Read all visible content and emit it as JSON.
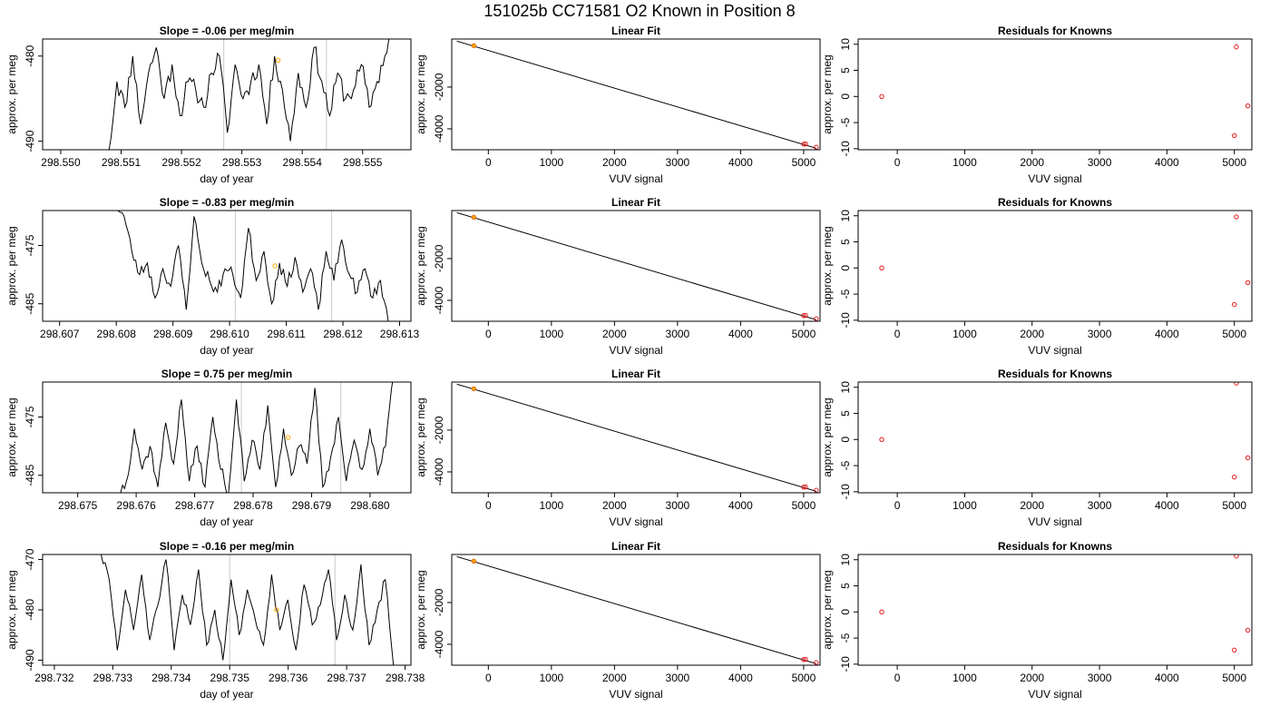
{
  "figure": {
    "title": "151025b     CC71581    O2 Known in Position  8"
  },
  "chart_data": [
    {
      "type": "line",
      "panel": "trace",
      "row": 0,
      "title": "Slope =  -0.06  per meg/min",
      "xlabel": "day of year",
      "ylabel": "approx. per meg",
      "xlim": [
        298.5497,
        298.5558
      ],
      "ylim": [
        -491,
        -478
      ],
      "xticks": [
        298.55,
        298.551,
        298.552,
        298.553,
        298.554,
        298.555
      ],
      "xtick_labels": [
        "298.550",
        "298.551",
        "298.552",
        "298.553",
        "298.554",
        "298.555"
      ],
      "yticks": [
        -480,
        -490
      ],
      "ytick_labels": [
        "-480",
        "-490"
      ],
      "vlines": [
        298.5527,
        298.5544
      ],
      "marker": {
        "x": 298.5536,
        "y": -480.5
      },
      "trace": {
        "x_start": 298.5508,
        "x_end": 298.5555,
        "seed": 11,
        "values": [
          -491,
          -483,
          -486,
          -480,
          -488,
          -482,
          -479,
          -485,
          -481,
          -487,
          -483,
          -484,
          -486,
          -482,
          -480,
          -489,
          -481,
          -485,
          -483,
          -481,
          -488,
          -480,
          -484,
          -490,
          -482,
          -486,
          -479,
          -483,
          -487,
          -482,
          -485,
          -484,
          -481,
          -486,
          -483,
          -480,
          -476
        ]
      }
    },
    {
      "type": "scatter",
      "panel": "linear-fit",
      "row": 0,
      "title": "Linear Fit",
      "xlabel": "VUV signal",
      "ylabel": "approx. per meg",
      "xlim": [
        -580,
        5260
      ],
      "ylim": [
        -5000,
        300
      ],
      "xticks": [
        0,
        1000,
        2000,
        3000,
        4000,
        5000
      ],
      "xtick_labels": [
        "0",
        "1000",
        "2000",
        "3000",
        "4000",
        "5000"
      ],
      "yticks": [
        -2000,
        -4000
      ],
      "ytick_labels": [
        "-2000",
        "-4000"
      ],
      "fit_line": {
        "x": [
          -500,
          5200
        ],
        "y": [
          200,
          -4930
        ]
      },
      "points": [
        {
          "x": -230,
          "y": -20,
          "color": "#d55e00"
        },
        {
          "x": 5000,
          "y": -4730,
          "color": "#e41a1c"
        },
        {
          "x": 5030,
          "y": -4720,
          "color": "#e41a1c"
        },
        {
          "x": 5200,
          "y": -4880,
          "color": "#e41a1c"
        }
      ],
      "highlight": {
        "x": -230,
        "y": -20,
        "color": "#ffa500"
      }
    },
    {
      "type": "scatter",
      "panel": "residuals",
      "row": 0,
      "title": "Residuals for Knowns",
      "xlabel": "VUV signal",
      "ylabel": "approx. per meg",
      "xlim": [
        -580,
        5260
      ],
      "ylim": [
        -10.2,
        11
      ],
      "xticks": [
        0,
        1000,
        2000,
        3000,
        4000,
        5000
      ],
      "xtick_labels": [
        "0",
        "1000",
        "2000",
        "3000",
        "4000",
        "5000"
      ],
      "yticks": [
        10,
        5,
        0,
        -5,
        -10
      ],
      "ytick_labels": [
        "10",
        "5",
        "0",
        "-5",
        "-10"
      ],
      "points": [
        {
          "x": -230,
          "y": 0,
          "color": "#e41a1c"
        },
        {
          "x": 5000,
          "y": -7.5,
          "color": "#e41a1c"
        },
        {
          "x": 5030,
          "y": 9.5,
          "color": "#e41a1c"
        },
        {
          "x": 5200,
          "y": -1.8,
          "color": "#e41a1c"
        }
      ]
    },
    {
      "type": "line",
      "panel": "trace",
      "row": 1,
      "title": "Slope =  -0.83  per meg/min",
      "xlabel": "day of year",
      "ylabel": "approx. per meg",
      "xlim": [
        298.6067,
        298.6132
      ],
      "ylim": [
        -488,
        -469
      ],
      "xticks": [
        298.607,
        298.608,
        298.609,
        298.61,
        298.611,
        298.612,
        298.613
      ],
      "xtick_labels": [
        "298.607",
        "298.608",
        "298.609",
        "298.610",
        "298.611",
        "298.612",
        "298.613"
      ],
      "yticks": [
        -475,
        -485
      ],
      "ytick_labels": [
        "-475",
        "-485"
      ],
      "vlines": [
        298.6101,
        298.6118
      ],
      "marker": {
        "x": 298.6108,
        "y": -478.5
      },
      "trace": {
        "x_start": 298.608,
        "x_end": 298.6128,
        "seed": 23,
        "values": [
          -468,
          -470,
          -476,
          -480,
          -478,
          -484,
          -479,
          -482,
          -475,
          -486,
          -470,
          -478,
          -481,
          -483,
          -479,
          -480,
          -484,
          -472,
          -481,
          -476,
          -485,
          -478,
          -482,
          -477,
          -483,
          -479,
          -486,
          -476,
          -481,
          -474,
          -480,
          -483,
          -479,
          -484,
          -481,
          -488
        ]
      }
    },
    {
      "type": "scatter",
      "panel": "linear-fit",
      "row": 1,
      "title": "Linear Fit",
      "xlabel": "VUV signal",
      "ylabel": "approx. per meg",
      "xlim": [
        -580,
        5260
      ],
      "ylim": [
        -5000,
        300
      ],
      "xticks": [
        0,
        1000,
        2000,
        3000,
        4000,
        5000
      ],
      "xtick_labels": [
        "0",
        "1000",
        "2000",
        "3000",
        "4000",
        "5000"
      ],
      "yticks": [
        -2000,
        -4000
      ],
      "ytick_labels": [
        "-2000",
        "-4000"
      ],
      "fit_line": {
        "x": [
          -500,
          5200
        ],
        "y": [
          200,
          -4930
        ]
      },
      "points": [
        {
          "x": -230,
          "y": -20,
          "color": "#d55e00"
        },
        {
          "x": 5000,
          "y": -4730,
          "color": "#e41a1c"
        },
        {
          "x": 5030,
          "y": -4720,
          "color": "#e41a1c"
        },
        {
          "x": 5200,
          "y": -4880,
          "color": "#e41a1c"
        }
      ],
      "highlight": {
        "x": -230,
        "y": -20,
        "color": "#ffa500"
      }
    },
    {
      "type": "scatter",
      "panel": "residuals",
      "row": 1,
      "title": "Residuals for Knowns",
      "xlabel": "VUV signal",
      "ylabel": "approx. per meg",
      "xlim": [
        -580,
        5260
      ],
      "ylim": [
        -10.2,
        11
      ],
      "xticks": [
        0,
        1000,
        2000,
        3000,
        4000,
        5000
      ],
      "xtick_labels": [
        "0",
        "1000",
        "2000",
        "3000",
        "4000",
        "5000"
      ],
      "yticks": [
        10,
        5,
        0,
        -5,
        -10
      ],
      "ytick_labels": [
        "10",
        "5",
        "0",
        "-5",
        "-10"
      ],
      "points": [
        {
          "x": -230,
          "y": 0,
          "color": "#e41a1c"
        },
        {
          "x": 5000,
          "y": -7,
          "color": "#e41a1c"
        },
        {
          "x": 5030,
          "y": 9.8,
          "color": "#e41a1c"
        },
        {
          "x": 5200,
          "y": -2.8,
          "color": "#e41a1c"
        }
      ]
    },
    {
      "type": "line",
      "panel": "trace",
      "row": 2,
      "title": "Slope =  0.75  per meg/min",
      "xlabel": "day of year",
      "ylabel": "approx. per meg",
      "xlim": [
        298.6744,
        298.6807
      ],
      "ylim": [
        -488,
        -469
      ],
      "xticks": [
        298.675,
        298.676,
        298.677,
        298.678,
        298.679,
        298.68
      ],
      "xtick_labels": [
        "298.675",
        "298.676",
        "298.677",
        "298.678",
        "298.679",
        "298.680"
      ],
      "yticks": [
        -475,
        -485
      ],
      "ytick_labels": [
        "-475",
        "-485"
      ],
      "vlines": [
        298.6778,
        298.6795
      ],
      "marker": {
        "x": 298.6786,
        "y": -478.5
      },
      "trace": {
        "x_start": 298.6757,
        "x_end": 298.6804,
        "seed": 37,
        "values": [
          -488,
          -486,
          -477,
          -484,
          -480,
          -487,
          -476,
          -483,
          -472,
          -486,
          -480,
          -487,
          -475,
          -484,
          -488,
          -472,
          -486,
          -479,
          -484,
          -473,
          -487,
          -477,
          -485,
          -480,
          -483,
          -470,
          -487,
          -482,
          -475,
          -486,
          -479,
          -484,
          -477,
          -485,
          -480,
          -468
        ]
      }
    },
    {
      "type": "scatter",
      "panel": "linear-fit",
      "row": 2,
      "title": "Linear Fit",
      "xlabel": "VUV signal",
      "ylabel": "approx. per meg",
      "xlim": [
        -580,
        5260
      ],
      "ylim": [
        -5000,
        300
      ],
      "xticks": [
        0,
        1000,
        2000,
        3000,
        4000,
        5000
      ],
      "xtick_labels": [
        "0",
        "1000",
        "2000",
        "3000",
        "4000",
        "5000"
      ],
      "yticks": [
        -2000,
        -4000
      ],
      "ytick_labels": [
        "-2000",
        "-4000"
      ],
      "fit_line": {
        "x": [
          -500,
          5200
        ],
        "y": [
          200,
          -4930
        ]
      },
      "points": [
        {
          "x": -230,
          "y": -20,
          "color": "#d55e00"
        },
        {
          "x": 5000,
          "y": -4730,
          "color": "#e41a1c"
        },
        {
          "x": 5030,
          "y": -4720,
          "color": "#e41a1c"
        },
        {
          "x": 5200,
          "y": -4880,
          "color": "#e41a1c"
        }
      ],
      "highlight": {
        "x": -230,
        "y": -20,
        "color": "#ffa500"
      }
    },
    {
      "type": "scatter",
      "panel": "residuals",
      "row": 2,
      "title": "Residuals for Knowns",
      "xlabel": "VUV signal",
      "ylabel": "approx. per meg",
      "xlim": [
        -580,
        5260
      ],
      "ylim": [
        -10.2,
        11
      ],
      "xticks": [
        0,
        1000,
        2000,
        3000,
        4000,
        5000
      ],
      "xtick_labels": [
        "0",
        "1000",
        "2000",
        "3000",
        "4000",
        "5000"
      ],
      "yticks": [
        10,
        5,
        0,
        -5,
        -10
      ],
      "ytick_labels": [
        "10",
        "5",
        "0",
        "-5",
        "-10"
      ],
      "points": [
        {
          "x": -230,
          "y": 0,
          "color": "#e41a1c"
        },
        {
          "x": 5000,
          "y": -7.2,
          "color": "#e41a1c"
        },
        {
          "x": 5030,
          "y": 10.8,
          "color": "#e41a1c"
        },
        {
          "x": 5200,
          "y": -3.5,
          "color": "#e41a1c"
        }
      ]
    },
    {
      "type": "line",
      "panel": "trace",
      "row": 3,
      "title": "Slope =  -0.16  per meg/min",
      "xlabel": "day of year",
      "ylabel": "approx. per meg",
      "xlim": [
        298.7318,
        298.7381
      ],
      "ylim": [
        -491,
        -469
      ],
      "xticks": [
        298.732,
        298.733,
        298.734,
        298.735,
        298.736,
        298.737,
        298.738
      ],
      "xtick_labels": [
        "298.732",
        "298.733",
        "298.734",
        "298.735",
        "298.736",
        "298.737",
        "298.738"
      ],
      "yticks": [
        -470,
        -480,
        -490
      ],
      "ytick_labels": [
        "-470",
        "-480",
        "-490"
      ],
      "vlines": [
        298.735,
        298.7368
      ],
      "marker": {
        "x": 298.7358,
        "y": -480
      },
      "trace": {
        "x_start": 298.7328,
        "x_end": 298.7378,
        "seed": 51,
        "values": [
          -469,
          -474,
          -488,
          -476,
          -484,
          -473,
          -486,
          -479,
          -470,
          -488,
          -477,
          -483,
          -472,
          -487,
          -480,
          -490,
          -474,
          -485,
          -476,
          -482,
          -487,
          -473,
          -484,
          -478,
          -488,
          -475,
          -483,
          -479,
          -472,
          -486,
          -477,
          -484,
          -471,
          -487,
          -480,
          -474,
          -491
        ]
      }
    },
    {
      "type": "scatter",
      "panel": "linear-fit",
      "row": 3,
      "title": "Linear Fit",
      "xlabel": "VUV signal",
      "ylabel": "approx. per meg",
      "xlim": [
        -580,
        5260
      ],
      "ylim": [
        -5000,
        300
      ],
      "xticks": [
        0,
        1000,
        2000,
        3000,
        4000,
        5000
      ],
      "xtick_labels": [
        "0",
        "1000",
        "2000",
        "3000",
        "4000",
        "5000"
      ],
      "yticks": [
        -2000,
        -4000
      ],
      "ytick_labels": [
        "-2000",
        "-4000"
      ],
      "fit_line": {
        "x": [
          -500,
          5200
        ],
        "y": [
          200,
          -4930
        ]
      },
      "points": [
        {
          "x": -230,
          "y": -20,
          "color": "#d55e00"
        },
        {
          "x": 5000,
          "y": -4730,
          "color": "#e41a1c"
        },
        {
          "x": 5030,
          "y": -4720,
          "color": "#e41a1c"
        },
        {
          "x": 5200,
          "y": -4880,
          "color": "#e41a1c"
        }
      ],
      "highlight": {
        "x": -230,
        "y": -20,
        "color": "#ffa500"
      }
    },
    {
      "type": "scatter",
      "panel": "residuals",
      "row": 3,
      "title": "Residuals for Knowns",
      "xlabel": "VUV signal",
      "ylabel": "approx. per meg",
      "xlim": [
        -580,
        5260
      ],
      "ylim": [
        -10.2,
        11
      ],
      "xticks": [
        0,
        1000,
        2000,
        3000,
        4000,
        5000
      ],
      "xtick_labels": [
        "0",
        "1000",
        "2000",
        "3000",
        "4000",
        "5000"
      ],
      "yticks": [
        10,
        5,
        0,
        -5,
        -10
      ],
      "ytick_labels": [
        "10",
        "5",
        "0",
        "-5",
        "-10"
      ],
      "points": [
        {
          "x": -230,
          "y": 0,
          "color": "#e41a1c"
        },
        {
          "x": 5000,
          "y": -7.3,
          "color": "#e41a1c"
        },
        {
          "x": 5030,
          "y": 10.7,
          "color": "#e41a1c"
        },
        {
          "x": 5200,
          "y": -3.5,
          "color": "#e41a1c"
        }
      ]
    }
  ]
}
